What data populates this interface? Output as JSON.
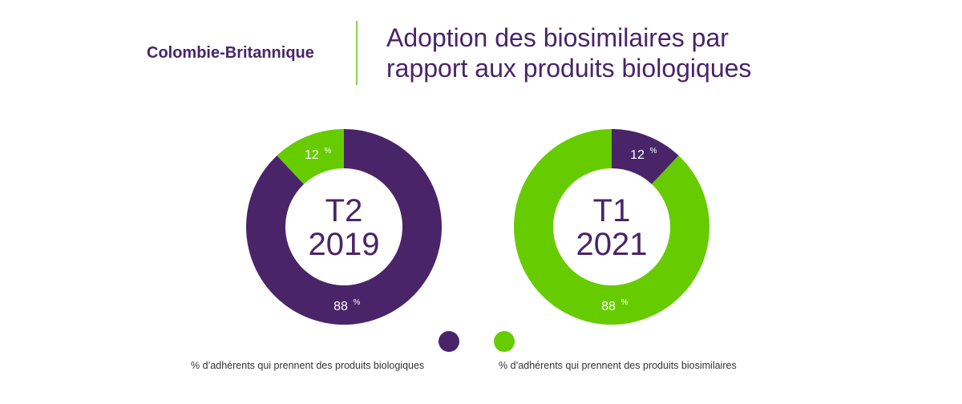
{
  "header": {
    "region": "Colombie-Britannique",
    "title_line1": "Adoption des biosimilaires par",
    "title_line2": "rapport aux produits biologiques"
  },
  "colors": {
    "biologic": "#4a2468",
    "biosimilar": "#66cc00",
    "divider": "#8fd14f"
  },
  "chart_data": [
    {
      "type": "pie",
      "center_label": [
        "T2",
        "2019"
      ],
      "series": [
        {
          "name": "% d'adhérents qui prennent des produits biologiques",
          "value": 88,
          "label": "88",
          "color": "#4a2468"
        },
        {
          "name": "% d'adhérents qui prennent des produits biosimilaires",
          "value": 12,
          "label": "12",
          "color": "#66cc00"
        }
      ],
      "unit": "%"
    },
    {
      "type": "pie",
      "center_label": [
        "T1",
        "2021"
      ],
      "series": [
        {
          "name": "% d'adhérents qui prennent des produits biologiques",
          "value": 12,
          "label": "12",
          "color": "#4a2468"
        },
        {
          "name": "% d'adhérents qui prennent des produits biosimilaires",
          "value": 88,
          "label": "88",
          "color": "#66cc00"
        }
      ],
      "unit": "%"
    }
  ],
  "legend": [
    {
      "label": "% d’adhérents qui prennent des produits biologiques",
      "color": "#4a2468"
    },
    {
      "label": "% d’adhérents qui prennent des produits biosimilaires",
      "color": "#66cc00"
    }
  ]
}
